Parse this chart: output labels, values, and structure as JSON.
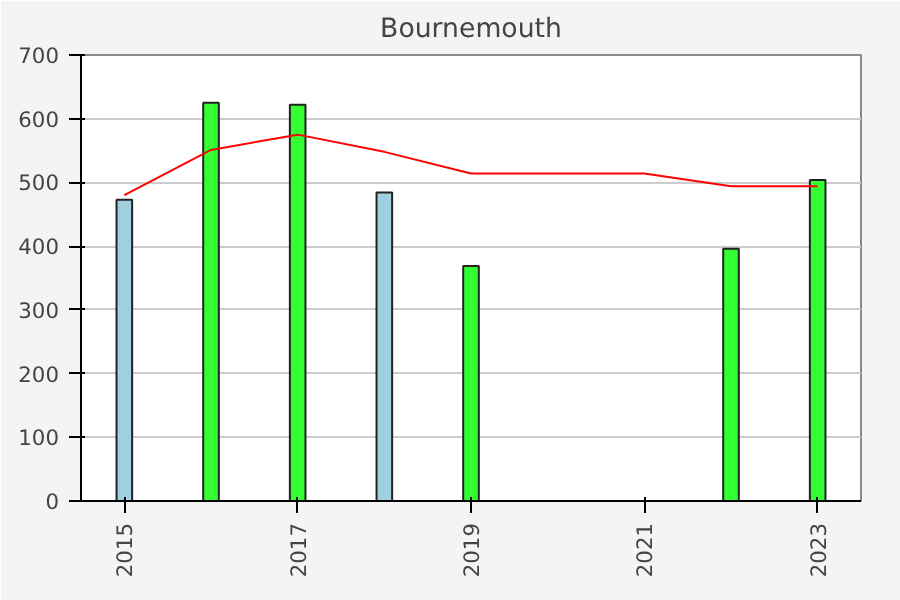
{
  "chart_data": {
    "type": "bar",
    "title": "Bournemouth",
    "x": [
      2015,
      2016,
      2017,
      2018,
      2019,
      2020,
      2021,
      2022,
      2023
    ],
    "series": [
      {
        "colors": [
          "#a0d0e0",
          "#33ff33",
          "#33ff33",
          "#a0d0e0",
          "#33ff33",
          "#33ff33",
          "#33ff33",
          "#33ff33",
          "#33ff33"
        ],
        "values": [
          473,
          625,
          622,
          484,
          369,
          null,
          null,
          396,
          504
        ]
      },
      {
        "type": "line",
        "color": "#ff0000",
        "values": [
          480,
          551,
          575,
          548,
          514,
          514,
          514,
          494,
          494
        ]
      }
    ],
    "xlim": [
      2014.5,
      2023.5
    ],
    "xticks": [
      2015,
      2017,
      2019,
      2021,
      2023
    ],
    "ylim": [
      0,
      700
    ],
    "yticks": [
      0,
      100,
      200,
      300,
      400,
      500,
      600,
      700
    ],
    "grid": "y"
  }
}
